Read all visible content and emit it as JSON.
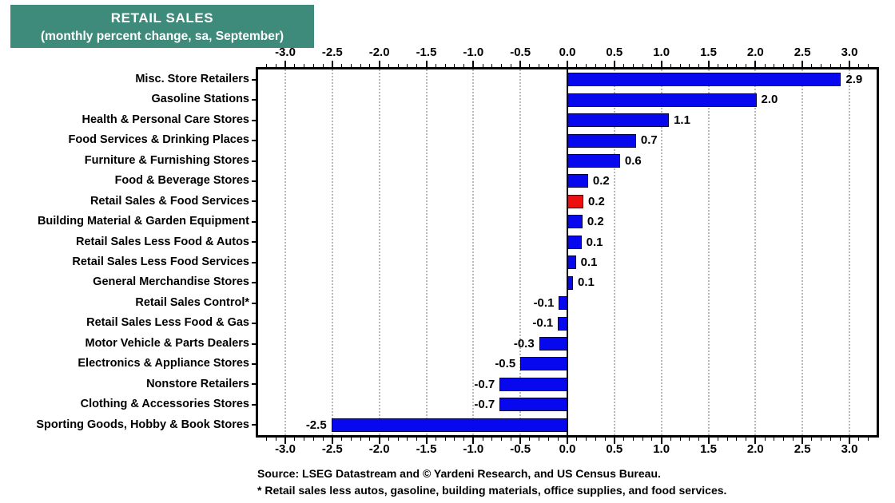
{
  "header": {
    "title": "RETAIL SALES",
    "subtitle": "(monthly percent change, sa,  September)"
  },
  "chart_data": {
    "type": "bar",
    "orientation": "horizontal",
    "title": "RETAIL SALES",
    "subtitle": "(monthly percent change, sa,  September)",
    "categories": [
      "Misc. Store Retailers",
      "Gasoline Stations",
      "Health & Personal Care Stores",
      "Food Services & Drinking Places",
      "Furniture & Furnishing Stores",
      "Food & Beverage Stores",
      "Retail Sales & Food Services",
      "Building Material & Garden Equipment",
      "Retail Sales Less Food & Autos",
      "Retail Sales Less Food Services",
      "General Merchandise Stores",
      "Retail Sales Control*",
      "Retail Sales Less Food & Gas",
      "Motor Vehicle & Parts Dealers",
      "Electronics & Appliance Stores",
      "Nonstore Retailers",
      "Clothing & Accessories Stores",
      "Sporting Goods, Hobby & Book Stores"
    ],
    "values": [
      2.9,
      2.0,
      1.1,
      0.7,
      0.6,
      0.2,
      0.2,
      0.2,
      0.1,
      0.1,
      0.1,
      -0.1,
      -0.1,
      -0.3,
      -0.5,
      -0.7,
      -0.7,
      -2.5
    ],
    "value_labels": [
      "2.9",
      "2.0",
      "1.1",
      "0.7",
      "0.6",
      "0.2",
      "0.2",
      "0.2",
      "0.1",
      "0.1",
      "0.1",
      "-0.1",
      "-0.1",
      "-0.3",
      "-0.5",
      "-0.7",
      "-0.7",
      "-2.5"
    ],
    "bar_lengths_est": [
      2.91,
      2.01,
      1.08,
      0.73,
      0.56,
      0.22,
      0.17,
      0.16,
      0.15,
      0.09,
      0.06,
      -0.09,
      -0.1,
      -0.3,
      -0.5,
      -0.72,
      -0.72,
      -2.51
    ],
    "highlight_index": 6,
    "axis": {
      "min": -3.0,
      "max": 3.0,
      "tick_step": 0.5,
      "minor_step": 0.1,
      "tick_labels": [
        "-3.0",
        "-2.5",
        "-2.0",
        "-1.5",
        "-1.0",
        "-0.5",
        "0.0",
        "0.5",
        "1.0",
        "1.5",
        "2.0",
        "2.5",
        "3.0"
      ],
      "grid": "dotted-vertical",
      "zero_line": true
    },
    "colors": {
      "bar_fill": "#0808ef",
      "bar_border": "#00003c",
      "highlight_fill": "#ee1010",
      "highlight_border": "#4d0000",
      "header_bg": "#3e8b7b",
      "header_text": "#ffffff",
      "gridline": "#b8b8b8"
    }
  },
  "footer": {
    "source_line": "Source: LSEG Datastream and © Yardeni Research, and US Census Bureau.",
    "footnote_line": "* Retail sales less autos, gasoline, building materials, office supplies, and food services."
  }
}
